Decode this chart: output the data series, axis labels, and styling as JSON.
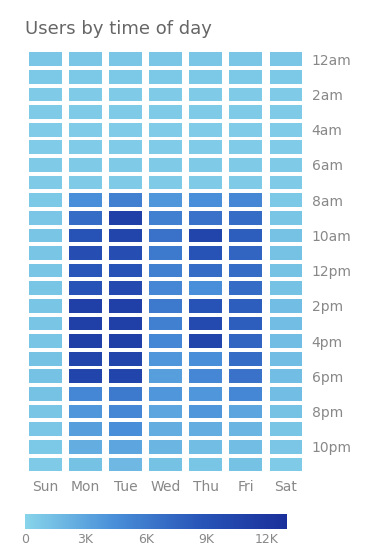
{
  "title": "Users by time of day",
  "days": [
    "Sun",
    "Mon",
    "Tue",
    "Wed",
    "Thu",
    "Fri",
    "Sat"
  ],
  "hours": [
    "12am",
    "2am",
    "4am",
    "6am",
    "8am",
    "10am",
    "12pm",
    "2pm",
    "4pm",
    "6pm",
    "8pm",
    "10pm"
  ],
  "colorbar_ticks": [
    0,
    3000,
    6000,
    9000,
    12000
  ],
  "colorbar_labels": [
    "0",
    "3K",
    "6K",
    "9K",
    "12K"
  ],
  "vmin": 0,
  "vmax": 13000,
  "title_fontsize": 13,
  "axis_fontsize": 10,
  "data": [
    [
      900,
      900,
      900,
      900,
      900,
      900,
      900
    ],
    [
      800,
      800,
      800,
      800,
      800,
      800,
      800
    ],
    [
      700,
      700,
      700,
      700,
      700,
      700,
      700
    ],
    [
      700,
      700,
      700,
      700,
      700,
      700,
      700
    ],
    [
      600,
      600,
      600,
      600,
      600,
      600,
      600
    ],
    [
      600,
      600,
      600,
      600,
      600,
      600,
      600
    ],
    [
      700,
      700,
      700,
      700,
      700,
      700,
      700
    ],
    [
      700,
      700,
      700,
      700,
      700,
      700,
      700
    ],
    [
      800,
      4500,
      5500,
      4000,
      4500,
      5000,
      800
    ],
    [
      900,
      7000,
      11000,
      5500,
      6500,
      7000,
      1000
    ],
    [
      1000,
      9000,
      10500,
      6500,
      10500,
      8000,
      1200
    ],
    [
      1000,
      9500,
      9500,
      6000,
      9000,
      7500,
      1200
    ],
    [
      1000,
      8500,
      9000,
      5500,
      7000,
      7000,
      1200
    ],
    [
      1000,
      9000,
      10000,
      5000,
      4500,
      7000,
      1200
    ],
    [
      1000,
      11000,
      11000,
      6000,
      9000,
      8000,
      1500
    ],
    [
      1000,
      11000,
      11000,
      5500,
      10000,
      8000,
      1500
    ],
    [
      1000,
      11000,
      11000,
      5000,
      10500,
      7500,
      1500
    ],
    [
      1200,
      10500,
      10500,
      4000,
      4500,
      7000,
      1500
    ],
    [
      1200,
      10500,
      10500,
      3500,
      5000,
      6500,
      1500
    ],
    [
      1200,
      5000,
      6000,
      4000,
      4000,
      5000,
      1500
    ],
    [
      1000,
      4000,
      5000,
      3000,
      4000,
      3000,
      1200
    ],
    [
      900,
      3500,
      4500,
      2500,
      2500,
      2000,
      1000
    ],
    [
      800,
      2500,
      3000,
      2000,
      1500,
      1500,
      900
    ],
    [
      700,
      1200,
      1800,
      1200,
      1000,
      1200,
      700
    ]
  ]
}
